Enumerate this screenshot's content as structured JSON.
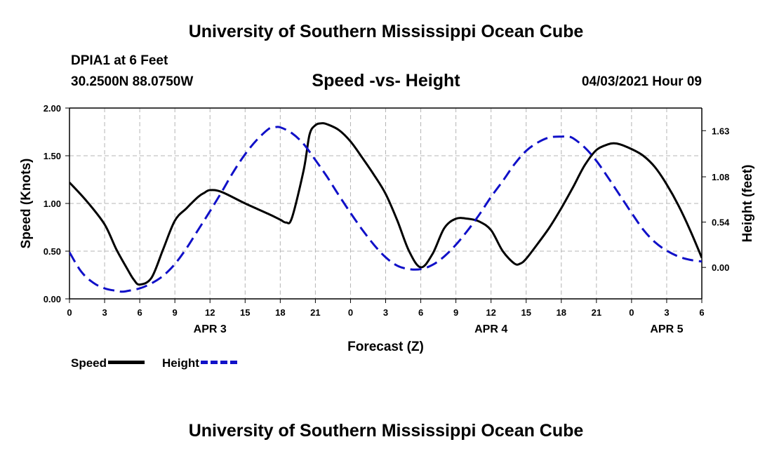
{
  "header": {
    "banner": "University of Southern Mississippi Ocean Cube",
    "station": "DPIA1 at 6 Feet",
    "coords": "30.2500N  88.0750W",
    "timestamp": "04/03/2021 Hour 09"
  },
  "footer": {
    "banner": "University of Southern Mississippi Ocean Cube"
  },
  "legend": {
    "speed_label": "Speed",
    "height_label": "Height"
  },
  "colors": {
    "speed": "#000000",
    "height": "#1010c8",
    "grid": "#b4b4b4"
  },
  "chart_data": {
    "type": "line",
    "title": "Speed -vs- Height",
    "xlabel": "Forecast (Z)",
    "ylabel": "Speed (Knots)",
    "y2label": "Height (feet)",
    "xlim": [
      0,
      54
    ],
    "ylim": [
      0,
      2.0
    ],
    "y2lim": [
      -0.375,
      1.9
    ],
    "grid": true,
    "x_ticks": [
      0,
      3,
      6,
      9,
      12,
      15,
      18,
      21,
      24,
      27,
      30,
      33,
      36,
      39,
      42,
      45,
      48,
      51,
      54
    ],
    "x_tick_labels": [
      "0",
      "3",
      "6",
      "9",
      "12",
      "15",
      "18",
      "21",
      "0",
      "3",
      "6",
      "9",
      "12",
      "15",
      "18",
      "21",
      "0",
      "3",
      "6"
    ],
    "date_labels": [
      {
        "x": 12,
        "label": "APR 3"
      },
      {
        "x": 36,
        "label": "APR 4"
      },
      {
        "x": 51,
        "label": "APR 5"
      }
    ],
    "y_ticks": [
      0,
      0.5,
      1.0,
      1.5,
      2.0
    ],
    "y_tick_labels": [
      "0.00",
      "0.50",
      "1.00",
      "1.50",
      "2.00"
    ],
    "y2_ticks": [
      0,
      0.54,
      1.08,
      1.63
    ],
    "y2_tick_labels": [
      "0.00",
      "0.54",
      "1.08",
      "1.63"
    ],
    "series": [
      {
        "name": "Speed",
        "axis": "left",
        "style": "solid",
        "x": [
          0,
          1.5,
          3,
          4,
          5,
          5.5,
          6,
          7,
          8,
          9,
          10,
          11,
          11.5,
          12,
          13,
          15,
          17,
          18,
          18.5,
          19,
          20,
          20.5,
          21,
          21.5,
          22,
          23,
          24,
          25,
          26,
          27,
          28,
          29,
          30,
          31,
          32,
          33,
          34,
          35,
          36,
          37,
          38,
          38.5,
          39,
          40,
          41,
          42,
          43,
          44,
          45,
          46,
          46.5,
          47,
          48,
          49,
          50,
          51,
          52,
          53,
          54
        ],
        "values": [
          1.22,
          1.02,
          0.78,
          0.52,
          0.3,
          0.2,
          0.15,
          0.22,
          0.52,
          0.82,
          0.95,
          1.07,
          1.11,
          1.14,
          1.12,
          1.0,
          0.89,
          0.83,
          0.8,
          0.85,
          1.35,
          1.72,
          1.82,
          1.84,
          1.83,
          1.77,
          1.65,
          1.48,
          1.3,
          1.1,
          0.82,
          0.5,
          0.33,
          0.47,
          0.74,
          0.84,
          0.84,
          0.81,
          0.72,
          0.5,
          0.37,
          0.37,
          0.42,
          0.58,
          0.75,
          0.95,
          1.17,
          1.4,
          1.56,
          1.62,
          1.63,
          1.62,
          1.57,
          1.5,
          1.38,
          1.2,
          0.98,
          0.72,
          0.43
        ]
      },
      {
        "name": "Height",
        "axis": "right",
        "style": "dashed",
        "x": [
          0,
          1,
          2,
          3,
          4,
          4.5,
          5,
          6,
          7,
          8,
          9,
          10,
          11,
          12,
          13,
          14,
          15,
          16,
          17,
          17.5,
          18,
          19,
          20,
          21,
          22,
          23,
          24,
          25,
          26,
          27,
          28,
          29,
          30,
          31,
          32,
          33,
          34,
          35,
          36,
          37,
          38,
          39,
          40,
          41,
          42,
          42.5,
          43,
          44,
          45,
          46,
          47,
          48,
          49,
          50,
          51,
          52,
          53,
          54
        ],
        "values": [
          0.18,
          -0.05,
          -0.18,
          -0.25,
          -0.28,
          -0.29,
          -0.28,
          -0.25,
          -0.19,
          -0.1,
          0.04,
          0.23,
          0.45,
          0.67,
          0.9,
          1.14,
          1.35,
          1.52,
          1.65,
          1.67,
          1.67,
          1.6,
          1.47,
          1.28,
          1.08,
          0.86,
          0.65,
          0.45,
          0.27,
          0.12,
          0.02,
          -0.02,
          -0.02,
          0.03,
          0.13,
          0.27,
          0.44,
          0.63,
          0.84,
          1.03,
          1.23,
          1.39,
          1.49,
          1.55,
          1.56,
          1.56,
          1.54,
          1.43,
          1.27,
          1.07,
          0.86,
          0.65,
          0.45,
          0.3,
          0.2,
          0.13,
          0.09,
          0.07
        ]
      }
    ]
  }
}
